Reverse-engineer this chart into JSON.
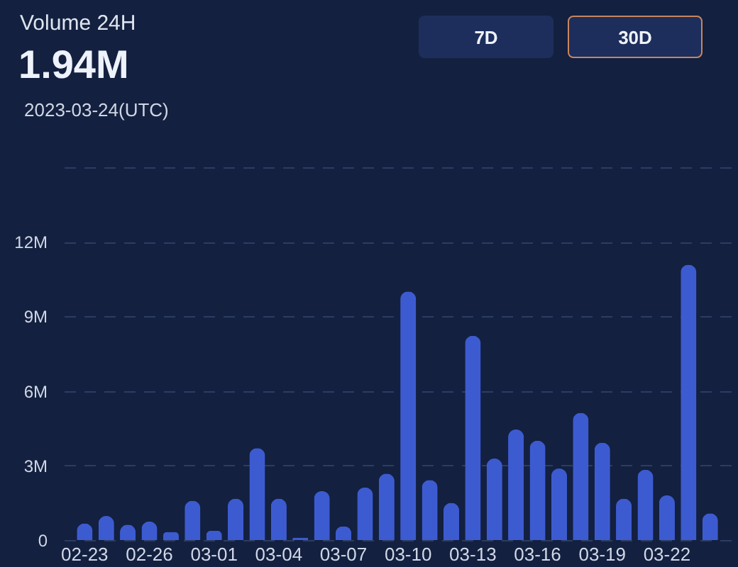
{
  "chart_data": {
    "type": "bar",
    "title": "Volume 24H",
    "subtitle": "1.94M",
    "annotations": [
      "2023-03-24(UTC)",
      "7D",
      "30D"
    ],
    "categories": [
      "02-23",
      null,
      null,
      "02-26",
      null,
      null,
      "03-01",
      null,
      null,
      "03-04",
      null,
      null,
      "03-07",
      null,
      null,
      "03-10",
      null,
      null,
      "03-13",
      null,
      null,
      "03-16",
      null,
      null,
      "03-19",
      null,
      null,
      "03-22",
      null,
      null
    ],
    "values": [
      0.67,
      0.97,
      0.62,
      0.75,
      0.33,
      1.58,
      0.38,
      1.67,
      3.7,
      1.67,
      0.1,
      1.97,
      0.55,
      2.12,
      2.67,
      10.0,
      2.42,
      1.5,
      8.22,
      3.28,
      4.45,
      4.0,
      2.88,
      5.12,
      3.92,
      1.67,
      2.83,
      1.8,
      11.08,
      1.08
    ],
    "color": "#3d5bd0",
    "ylim": [
      0,
      15
    ],
    "yticks": [
      {
        "value": 0,
        "label": "0"
      },
      {
        "value": 3,
        "label": "3M"
      },
      {
        "value": 6,
        "label": "6M"
      },
      {
        "value": 9,
        "label": "9M"
      },
      {
        "value": 12,
        "label": "12M"
      },
      {
        "value": 15,
        "label": null
      }
    ],
    "grid": "y"
  }
}
